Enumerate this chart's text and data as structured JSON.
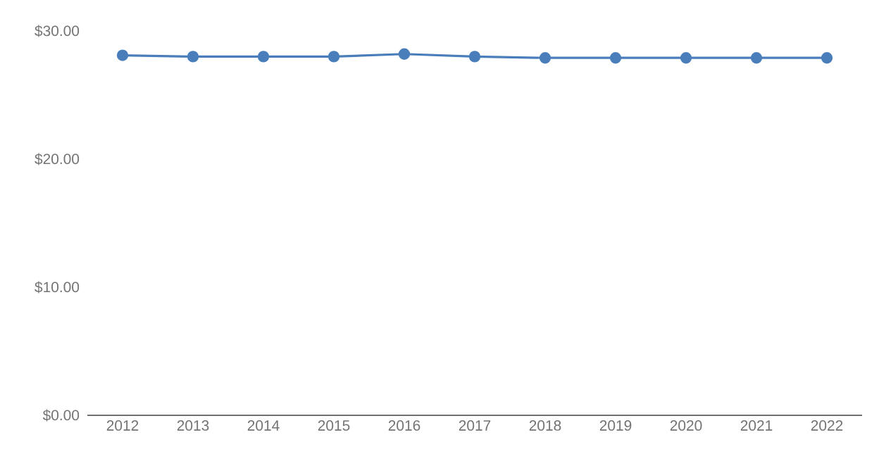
{
  "chart_data": {
    "type": "line",
    "categories": [
      "2012",
      "2013",
      "2014",
      "2015",
      "2016",
      "2017",
      "2018",
      "2019",
      "2020",
      "2021",
      "2022"
    ],
    "series": [
      {
        "color": "#4a7ebb",
        "values": [
          28.1,
          28,
          28,
          28,
          28.2,
          28,
          27.9,
          27.9,
          27.9,
          27.9,
          27.9
        ]
      }
    ],
    "ylim": [
      0,
      30
    ],
    "yticks": [
      {
        "value": 0,
        "label": "$0.00"
      },
      {
        "value": 10,
        "label": "$10.00"
      },
      {
        "value": 20,
        "label": "$20.00"
      },
      {
        "value": 30,
        "label": "$30.00"
      }
    ],
    "grid": false,
    "marker": "circle",
    "line_style": "solid"
  }
}
